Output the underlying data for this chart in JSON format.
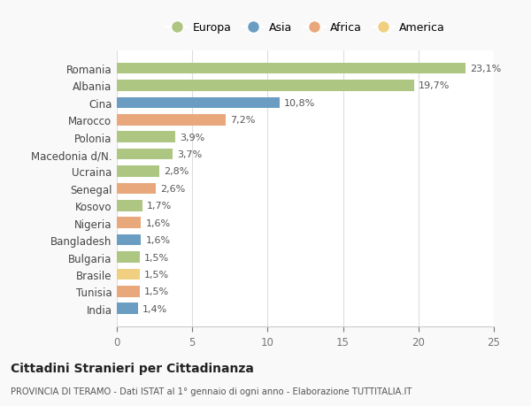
{
  "categories": [
    "Romania",
    "Albania",
    "Cina",
    "Marocco",
    "Polonia",
    "Macedonia d/N.",
    "Ucraina",
    "Senegal",
    "Kosovo",
    "Nigeria",
    "Bangladesh",
    "Bulgaria",
    "Brasile",
    "Tunisia",
    "India"
  ],
  "values": [
    23.1,
    19.7,
    10.8,
    7.2,
    3.9,
    3.7,
    2.8,
    2.6,
    1.7,
    1.6,
    1.6,
    1.5,
    1.5,
    1.5,
    1.4
  ],
  "labels": [
    "23,1%",
    "19,7%",
    "10,8%",
    "7,2%",
    "3,9%",
    "3,7%",
    "2,8%",
    "2,6%",
    "1,7%",
    "1,6%",
    "1,6%",
    "1,5%",
    "1,5%",
    "1,5%",
    "1,4%"
  ],
  "colors": [
    "#adc682",
    "#adc682",
    "#6b9dc2",
    "#e8a87c",
    "#adc682",
    "#adc682",
    "#adc682",
    "#e8a87c",
    "#adc682",
    "#e8a87c",
    "#6b9dc2",
    "#adc682",
    "#f0d080",
    "#e8a87c",
    "#6b9dc2"
  ],
  "legend_labels": [
    "Europa",
    "Asia",
    "Africa",
    "America"
  ],
  "legend_colors": [
    "#adc682",
    "#6b9dc2",
    "#e8a87c",
    "#f0d080"
  ],
  "title": "Cittadini Stranieri per Cittadinanza",
  "subtitle": "PROVINCIA DI TERAMO - Dati ISTAT al 1° gennaio di ogni anno - Elaborazione TUTTITALIA.IT",
  "xlim": [
    0,
    25
  ],
  "xticks": [
    0,
    5,
    10,
    15,
    20,
    25
  ],
  "background_color": "#f9f9f9",
  "bar_background": "#ffffff",
  "bar_height": 0.65
}
